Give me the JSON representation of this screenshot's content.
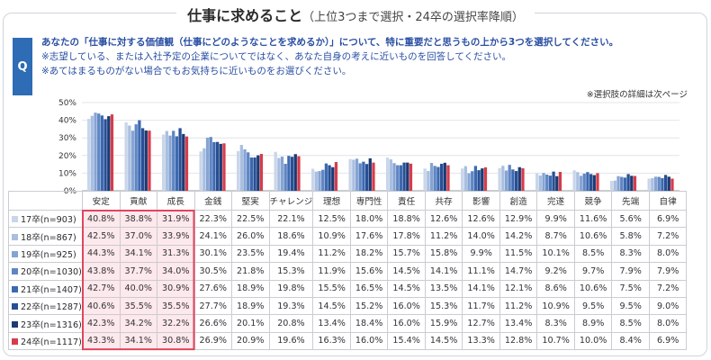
{
  "title": {
    "main": "仕事に求めること",
    "sub": "（上位3つまで選択・24卒の選択率降順）"
  },
  "question": {
    "badge": "Q",
    "main": "あなたの「仕事に対する価値観（仕事にどのようなことを求めるか）」について、特に重要だと思うもの上から3つを選択してください。",
    "note1": "※志望している、または入社予定の企業についてではなく、あなた自身の考えに近いものを回答してください。",
    "note2": "※あてはまるものがない場合でもお気持ちに近いものをお選びください。",
    "detail": "※選択肢の詳細は次ページ"
  },
  "colors": {
    "accent": "#2e6cb5",
    "highlight_border": "#e0455f",
    "highlight_fill": "#fde8ec"
  },
  "chart_data": {
    "type": "bar",
    "title": "仕事に求めること",
    "ylim": [
      0,
      50
    ],
    "yticks": [
      "0%",
      "10%",
      "20%",
      "30%",
      "40%",
      "50%"
    ],
    "categories": [
      "安定",
      "貢献",
      "成長",
      "金銭",
      "堅実",
      "チャレンジ",
      "理想",
      "専門性",
      "責任",
      "共存",
      "影響",
      "創造",
      "完遂",
      "競争",
      "先端",
      "自律"
    ],
    "series": [
      {
        "name": "17卒(n=903)",
        "color": "#c9d6ea",
        "values": [
          40.8,
          38.8,
          31.9,
          22.3,
          22.5,
          22.1,
          12.5,
          18.0,
          18.8,
          12.6,
          12.6,
          12.9,
          9.9,
          11.6,
          5.6,
          6.9
        ]
      },
      {
        "name": "18卒(n=867)",
        "color": "#a9bfe0",
        "values": [
          42.5,
          37.0,
          33.9,
          24.1,
          26.0,
          18.6,
          10.9,
          17.6,
          17.8,
          11.2,
          14.0,
          14.2,
          8.7,
          10.6,
          5.8,
          7.2
        ]
      },
      {
        "name": "19卒(n=925)",
        "color": "#86a4d3",
        "values": [
          44.3,
          34.1,
          31.3,
          30.1,
          23.5,
          19.4,
          11.2,
          18.2,
          15.7,
          15.8,
          9.9,
          11.5,
          10.1,
          8.5,
          8.3,
          8.0
        ]
      },
      {
        "name": "20卒(n=1030)",
        "color": "#5f86c4",
        "values": [
          43.8,
          37.7,
          34.0,
          30.5,
          21.8,
          15.3,
          11.9,
          15.6,
          14.5,
          14.1,
          11.1,
          14.7,
          9.2,
          9.7,
          7.9,
          7.9
        ]
      },
      {
        "name": "21卒(n=1407)",
        "color": "#3d69b0",
        "values": [
          42.7,
          40.0,
          30.9,
          27.6,
          18.9,
          19.8,
          15.5,
          16.5,
          14.5,
          13.5,
          14.1,
          12.1,
          8.6,
          10.6,
          7.5,
          7.2
        ]
      },
      {
        "name": "22卒(n=1287)",
        "color": "#284f95",
        "values": [
          40.6,
          35.5,
          35.5,
          27.7,
          18.9,
          19.3,
          14.5,
          15.2,
          16.0,
          15.3,
          11.7,
          11.2,
          10.9,
          9.5,
          9.5,
          9.0
        ]
      },
      {
        "name": "23卒(n=1316)",
        "color": "#1c3a74",
        "values": [
          42.3,
          34.2,
          32.2,
          26.6,
          20.1,
          20.8,
          13.4,
          18.4,
          16.0,
          15.9,
          12.7,
          13.4,
          8.3,
          8.9,
          8.5,
          8.0
        ]
      },
      {
        "name": "24卒(n=1117)",
        "color": "#d73c4a",
        "values": [
          43.3,
          34.1,
          30.8,
          26.9,
          20.9,
          19.6,
          16.3,
          16.0,
          15.4,
          14.5,
          13.3,
          12.8,
          10.7,
          10.0,
          8.4,
          6.9
        ]
      }
    ]
  }
}
